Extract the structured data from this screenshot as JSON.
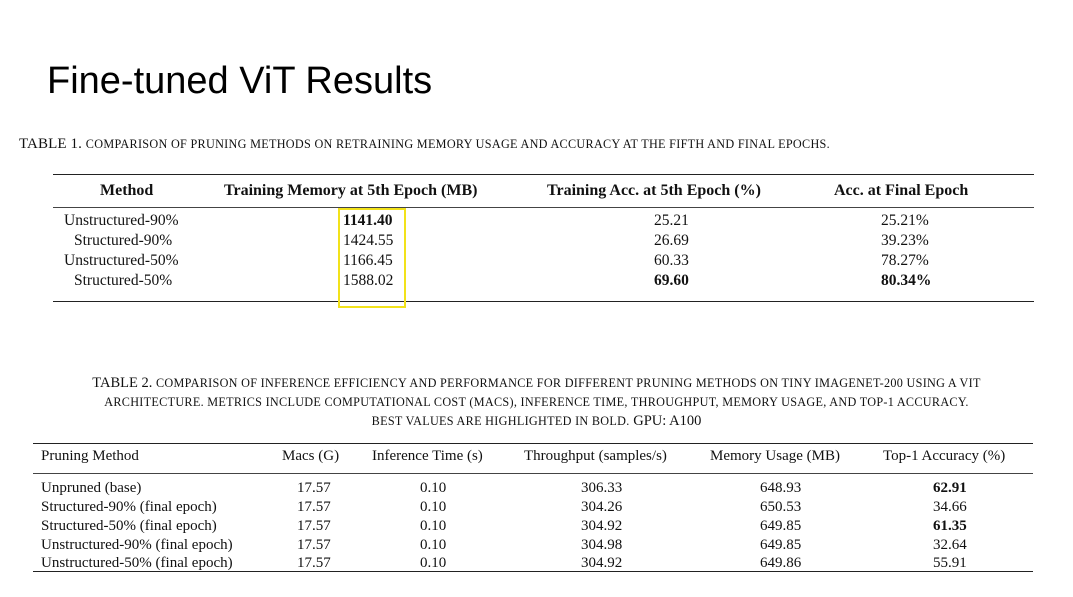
{
  "slide": {
    "title": "Fine-tuned ViT Results"
  },
  "table1": {
    "caption_prefix": "TABLE 1.",
    "caption_text": "Comparison of pruning methods on retraining memory usage and accuracy at the fifth and final epochs.",
    "headers": [
      "Method",
      "Training Memory at 5th Epoch (MB)",
      "Training Acc. at 5th Epoch (%)",
      "Acc. at Final Epoch"
    ],
    "rows": [
      [
        "Unstructured-90%",
        "1141.40",
        "25.21",
        "25.21%"
      ],
      [
        "Structured-90%",
        "1424.55",
        "26.69",
        "39.23%"
      ],
      [
        "Unstructured-50%",
        "1166.45",
        "60.33",
        "78.27%"
      ],
      [
        "Structured-50%",
        "1588.02",
        "69.60",
        "80.34%"
      ]
    ],
    "highlight_color": "#f2e21a"
  },
  "table2": {
    "caption_prefix": "TABLE 2.",
    "caption_line1": "Comparison of inference efficiency and performance for different pruning methods on Tiny ImageNet-200 using a ViT",
    "caption_line2": "architecture. Metrics include computational cost (MACs), inference time, throughput, memory usage, and top-1 accuracy.",
    "caption_line3a": "Best values are highlighted in bold.",
    "caption_line3b": "GPU: A100",
    "headers": [
      "Pruning Method",
      "Macs (G)",
      "Inference Time (s)",
      "Throughput (samples/s)",
      "Memory Usage (MB)",
      "Top-1 Accuracy (%)"
    ],
    "rows": [
      [
        "Unpruned (base)",
        "17.57",
        "0.10",
        "306.33",
        "648.93",
        "62.91"
      ],
      [
        "Structured-90% (final epoch)",
        "17.57",
        "0.10",
        "304.26",
        "650.53",
        "34.66"
      ],
      [
        "Structured-50% (final epoch)",
        "17.57",
        "0.10",
        "304.92",
        "649.85",
        "61.35"
      ],
      [
        "Unstructured-90% (final epoch)",
        "17.57",
        "0.10",
        "304.98",
        "649.85",
        "32.64"
      ],
      [
        "Unstructured-50% (final epoch)",
        "17.57",
        "0.10",
        "304.92",
        "649.86",
        "55.91"
      ]
    ]
  }
}
